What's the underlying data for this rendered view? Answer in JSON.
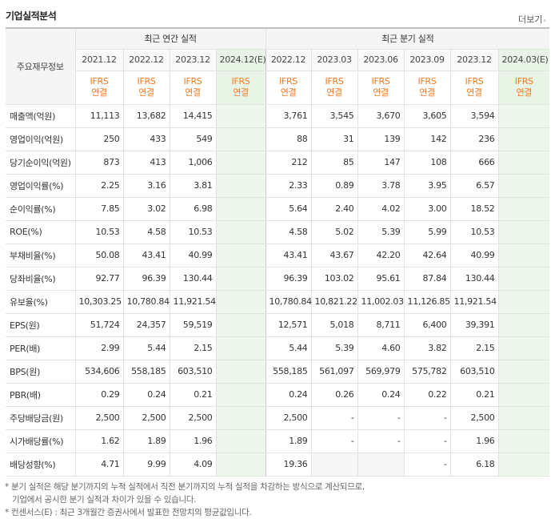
{
  "header": {
    "title": "기업실적분석",
    "more_label": "더보기",
    "more_icon": "chevron-right-icon"
  },
  "table": {
    "rowhead_label": "주요재무정보",
    "annual_title": "최근 연간 실적",
    "quarterly_title": "최근 분기 실적",
    "annual_periods": [
      "2021.12",
      "2022.12",
      "2023.12",
      "2024.12(E)"
    ],
    "quarterly_periods": [
      "2022.12",
      "2023.03",
      "2023.06",
      "2023.09",
      "2023.12",
      "2024.03(E)"
    ],
    "basis_line1": "IFRS",
    "basis_line2": "연결",
    "rows": [
      {
        "label": "매출액(억원)",
        "annual": [
          "11,113",
          "13,682",
          "14,415",
          ""
        ],
        "quarterly": [
          "3,761",
          "3,545",
          "3,670",
          "3,605",
          "3,594",
          ""
        ]
      },
      {
        "label": "영업이익(억원)",
        "annual": [
          "250",
          "433",
          "549",
          ""
        ],
        "quarterly": [
          "88",
          "31",
          "139",
          "142",
          "236",
          ""
        ]
      },
      {
        "label": "당기순이익(억원)",
        "annual": [
          "873",
          "413",
          "1,006",
          ""
        ],
        "quarterly": [
          "212",
          "85",
          "147",
          "108",
          "666",
          ""
        ]
      },
      {
        "label": "영업이익률(%)",
        "annual": [
          "2.25",
          "3.16",
          "3.81",
          ""
        ],
        "quarterly": [
          "2.33",
          "0.89",
          "3.78",
          "3.95",
          "6.57",
          ""
        ]
      },
      {
        "label": "순이익률(%)",
        "annual": [
          "7.85",
          "3.02",
          "6.98",
          ""
        ],
        "quarterly": [
          "5.64",
          "2.40",
          "4.02",
          "3.00",
          "18.52",
          ""
        ]
      },
      {
        "label": "ROE(%)",
        "annual": [
          "10.53",
          "4.58",
          "10.53",
          ""
        ],
        "quarterly": [
          "4.58",
          "5.02",
          "5.39",
          "5.99",
          "10.53",
          ""
        ]
      },
      {
        "label": "부채비율(%)",
        "annual": [
          "50.08",
          "43.41",
          "40.99",
          ""
        ],
        "quarterly": [
          "43.41",
          "43.67",
          "42.20",
          "42.64",
          "40.99",
          ""
        ]
      },
      {
        "label": "당좌비율(%)",
        "annual": [
          "92.77",
          "96.39",
          "130.44",
          ""
        ],
        "quarterly": [
          "96.39",
          "103.02",
          "95.61",
          "87.84",
          "130.44",
          ""
        ]
      },
      {
        "label": "유보율(%)",
        "annual": [
          "10,303.25",
          "10,780.84",
          "11,921.54",
          ""
        ],
        "quarterly": [
          "10,780.84",
          "10,821.22",
          "11,002.03",
          "11,126.85",
          "11,921.54",
          ""
        ]
      },
      {
        "label": "EPS(원)",
        "annual": [
          "51,724",
          "24,357",
          "59,519",
          ""
        ],
        "quarterly": [
          "12,571",
          "5,018",
          "8,711",
          "6,400",
          "39,391",
          ""
        ]
      },
      {
        "label": "PER(배)",
        "annual": [
          "2.99",
          "5.44",
          "2.15",
          ""
        ],
        "quarterly": [
          "5.44",
          "5.39",
          "4.60",
          "3.82",
          "2.15",
          ""
        ]
      },
      {
        "label": "BPS(원)",
        "annual": [
          "534,606",
          "558,185",
          "603,510",
          ""
        ],
        "quarterly": [
          "558,185",
          "561,097",
          "569,979",
          "575,782",
          "603,510",
          ""
        ]
      },
      {
        "label": "PBR(배)",
        "annual": [
          "0.29",
          "0.24",
          "0.21",
          ""
        ],
        "quarterly": [
          "0.24",
          "0.26",
          "0.24",
          "0.22",
          "0.21",
          ""
        ]
      },
      {
        "label": "주당배당금(원)",
        "annual": [
          "2,500",
          "2,500",
          "2,500",
          ""
        ],
        "quarterly": [
          "2,500",
          "-",
          "-",
          "-",
          "2,500",
          ""
        ]
      },
      {
        "label": "시가배당률(%)",
        "annual": [
          "1.62",
          "1.89",
          "1.96",
          ""
        ],
        "quarterly": [
          "1.89",
          "-",
          "-",
          "-",
          "1.96",
          ""
        ]
      },
      {
        "label": "배당성향(%)",
        "annual": [
          "4.71",
          "9.99",
          "4.09",
          ""
        ],
        "quarterly": [
          "19.36",
          "",
          "",
          "-",
          "6.18",
          ""
        ]
      }
    ]
  },
  "notes": {
    "line1": "* 분기 실적은 해당 분기까지의 누적 실적에서 직전 분기까지의 누적 실적을 차감하는 방식으로 계산되므로,",
    "line2": "기업에서 공시한 분기 실적과 차이가 있을 수 있습니다.",
    "line3": "* 컨센서스(E) : 최근 3개월간 증권사에서 발표한 전망치의 평균값입니다."
  },
  "colors": {
    "ifrs": "#f47920",
    "estimate_bg": "#eef7ec",
    "estimate_text": "#2e8b2e"
  }
}
